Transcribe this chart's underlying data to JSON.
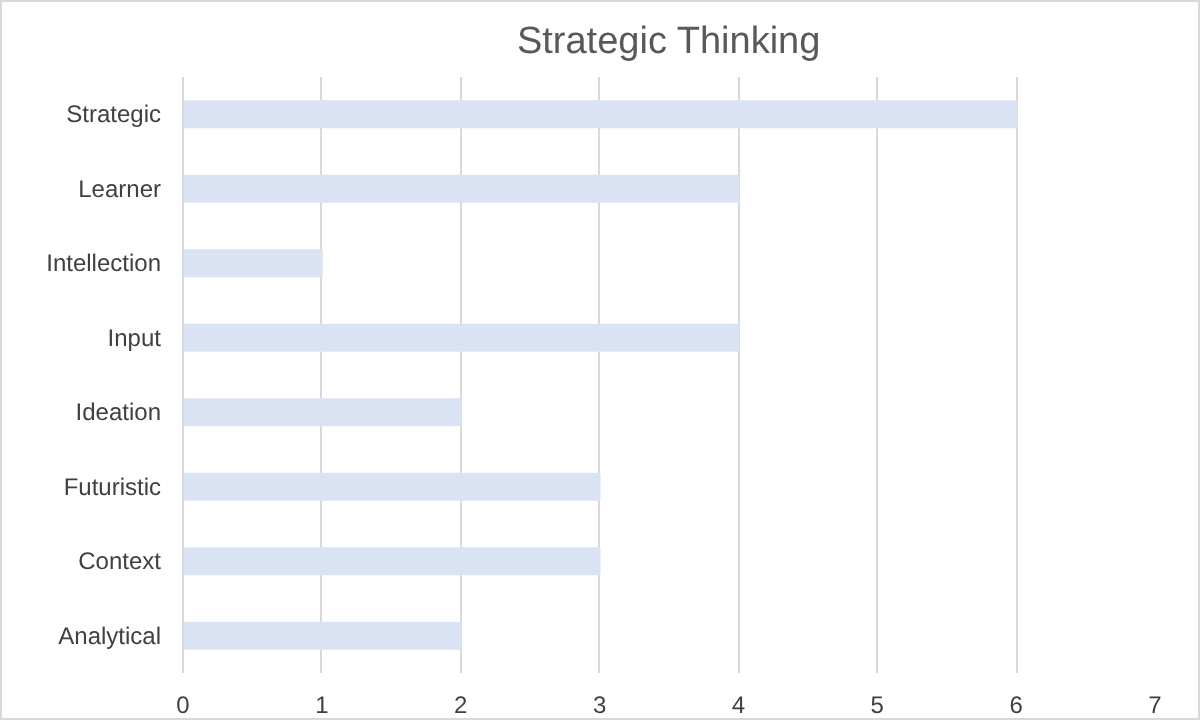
{
  "chart_data": {
    "type": "bar",
    "orientation": "horizontal",
    "title": "Strategic Thinking",
    "categories": [
      "Strategic",
      "Learner",
      "Intellection",
      "Input",
      "Ideation",
      "Futuristic",
      "Context",
      "Analytical"
    ],
    "values": [
      6,
      4,
      1,
      4,
      2,
      3,
      3,
      2
    ],
    "color": "#dae3f3",
    "xlim": [
      0,
      7
    ],
    "xticks": [
      0,
      1,
      2,
      3,
      4,
      5,
      6,
      7
    ],
    "grid": "x"
  }
}
